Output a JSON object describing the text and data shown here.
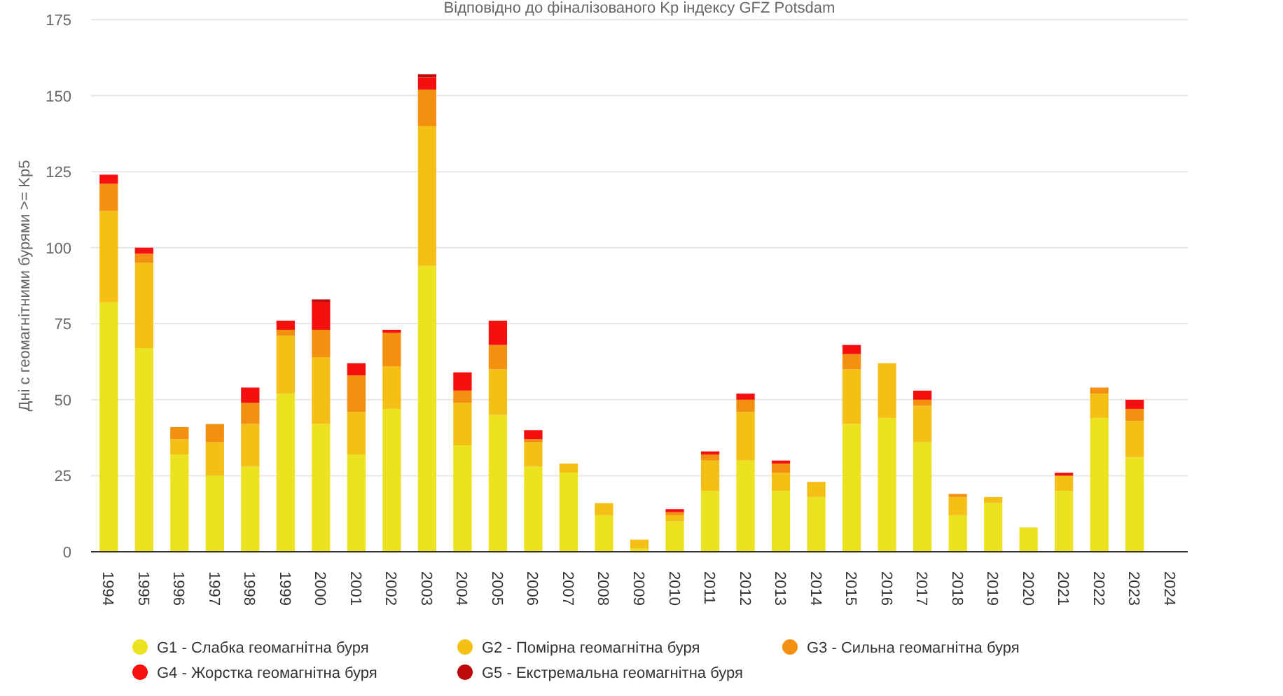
{
  "chart_data": {
    "type": "bar",
    "stacked": true,
    "subtitle": "Відповідно до фіналізованого Kp індексу GFZ Potsdam",
    "ylabel": "Дні с геомагнітними бурями >= Kp5",
    "categories": [
      "1994",
      "1995",
      "1996",
      "1997",
      "1998",
      "1999",
      "2000",
      "2001",
      "2002",
      "2003",
      "2004",
      "2005",
      "2006",
      "2007",
      "2008",
      "2009",
      "2010",
      "2011",
      "2012",
      "2013",
      "2014",
      "2015",
      "2016",
      "2017",
      "2018",
      "2019",
      "2020",
      "2021",
      "2022",
      "2023",
      "2024"
    ],
    "series": [
      {
        "name": "G1 - Слабка геомагнітна буря",
        "color": "#ede21f",
        "values": [
          82,
          67,
          32,
          25,
          28,
          52,
          42,
          32,
          47,
          94,
          35,
          45,
          28,
          26,
          12,
          1,
          10,
          20,
          30,
          20,
          18,
          42,
          44,
          36,
          12,
          16,
          8,
          20,
          44,
          31,
          0
        ]
      },
      {
        "name": "G2 - Помірна геомагнітна буря",
        "color": "#f5c016",
        "values": [
          30,
          28,
          5,
          11,
          14,
          19,
          22,
          14,
          14,
          46,
          14,
          15,
          8,
          3,
          4,
          3,
          2,
          10,
          16,
          6,
          5,
          18,
          18,
          12,
          6,
          2,
          0,
          5,
          8,
          12,
          0
        ]
      },
      {
        "name": "G3 - Сильна геомагнітна буря",
        "color": "#f39010",
        "values": [
          9,
          3,
          4,
          6,
          7,
          2,
          9,
          12,
          11,
          12,
          4,
          8,
          1,
          0,
          0,
          0,
          1,
          2,
          4,
          3,
          0,
          5,
          0,
          2,
          1,
          0,
          0,
          0,
          2,
          4,
          0
        ]
      },
      {
        "name": "G4 - Жорстка геомагнітна буря",
        "color": "#f50f0f",
        "values": [
          3,
          2,
          0,
          0,
          5,
          3,
          9,
          4,
          1,
          4,
          6,
          8,
          3,
          0,
          0,
          0,
          1,
          1,
          2,
          1,
          0,
          3,
          0,
          3,
          0,
          0,
          0,
          1,
          0,
          3,
          0
        ]
      },
      {
        "name": "G5 - Екстремальна геомагнітна буря",
        "color": "#c00a0a",
        "values": [
          0,
          0,
          0,
          0,
          0,
          0,
          1,
          0,
          0,
          1,
          0,
          0,
          0,
          0,
          0,
          0,
          0,
          0,
          0,
          0,
          0,
          0,
          0,
          0,
          0,
          0,
          0,
          0,
          0,
          0,
          0
        ]
      }
    ],
    "ylim": [
      0,
      175
    ],
    "yticks": [
      0,
      25,
      50,
      75,
      100,
      125,
      150,
      175
    ],
    "grid": "y",
    "legend": "bottom"
  }
}
